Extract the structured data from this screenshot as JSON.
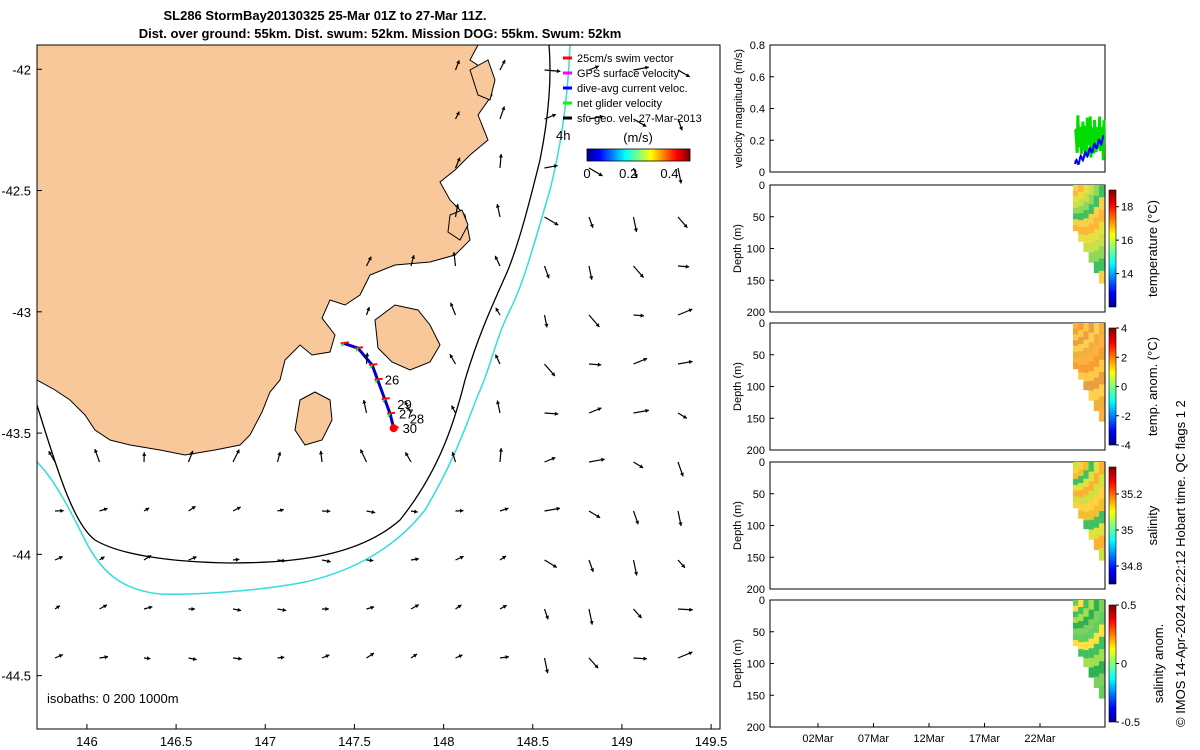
{
  "title": {
    "line1": "SL286 StormBay20130325 25-Mar 01Z to 27-Mar 11Z.",
    "line2": "Dist. over ground: 55km. Dist. swum: 52km. Mission DOG: 55km. Swum: 52km"
  },
  "colors": {
    "land": "#f9c89a",
    "isobath_200": "#000000",
    "isobath_1000": "#33dddd",
    "swim_vector": "#ff0000",
    "gps_velocity": "#ff00ff",
    "dive_avg": "#0000ff",
    "net_glider": "#00ff00",
    "sfc_geo": "#000000"
  },
  "chart_data": [
    {
      "type": "map",
      "x_ticks": [
        "146",
        "146.5",
        "147",
        "147.5",
        "148",
        "148.5",
        "149",
        "149.5"
      ],
      "y_ticks": [
        "-42",
        "-42.5",
        "-43",
        "-43.5",
        "-44",
        "-44.5"
      ],
      "xlim": [
        145.72,
        149.55
      ],
      "ylim": [
        -44.72,
        -41.9
      ],
      "legend": [
        {
          "label": "25cm/s swim vector",
          "color": "#ff0000"
        },
        {
          "label": "GPS surface velocity",
          "color": "#ff00ff"
        },
        {
          "label": "dive-avg current veloc.",
          "color": "#0000ff"
        },
        {
          "label": "net glider velocity",
          "color": "#00ff00"
        },
        {
          "label": "sfc geo. vel. 27-Mar-2013",
          "color": "#000000"
        }
      ],
      "colorbar": {
        "label": "(m/s)",
        "ticks": [
          "0",
          "0.2",
          "0.4"
        ],
        "range": [
          0,
          0.5
        ]
      },
      "note_4h": "4h",
      "isobaths_label": "isobaths: 0   200  1000m",
      "track": [
        {
          "lon": 147.44,
          "lat": -43.13
        },
        {
          "lon": 147.52,
          "lat": -43.15
        },
        {
          "lon": 147.6,
          "lat": -43.22
        },
        {
          "lon": 147.63,
          "lat": -43.28
        },
        {
          "lon": 147.67,
          "lat": -43.36
        },
        {
          "lon": 147.7,
          "lat": -43.42
        },
        {
          "lon": 147.72,
          "lat": -43.48
        }
      ],
      "day_labels": [
        {
          "text": "26",
          "lon": 147.67,
          "lat": -43.28
        },
        {
          "text": "29",
          "lon": 147.74,
          "lat": -43.38
        },
        {
          "text": "27",
          "lon": 147.75,
          "lat": -43.42
        },
        {
          "text": "28",
          "lon": 147.81,
          "lat": -43.44
        },
        {
          "text": "30",
          "lon": 147.77,
          "lat": -43.48
        }
      ]
    },
    {
      "type": "line",
      "ylabel": "velocity magnitude (m/s)",
      "y_ticks": [
        "0",
        "0.2",
        "0.4",
        "0.6",
        "0.8"
      ],
      "ylim": [
        0,
        0.8
      ]
    },
    {
      "type": "heatmap",
      "ylabel": "Depth (m)",
      "y_ticks": [
        "0",
        "50",
        "100",
        "150",
        "200"
      ],
      "colorbar_label": "temperature (°C)",
      "colorbar_ticks": [
        "18",
        "16",
        "14"
      ],
      "colorbar_range": [
        12,
        19
      ]
    },
    {
      "type": "heatmap",
      "ylabel": "Depth (m)",
      "y_ticks": [
        "0",
        "50",
        "100",
        "150",
        "200"
      ],
      "colorbar_label": "temp. anom. (°C)",
      "colorbar_ticks": [
        "4",
        "2",
        "0",
        "-2",
        "-4"
      ],
      "colorbar_range": [
        -4,
        4
      ]
    },
    {
      "type": "heatmap",
      "ylabel": "Depth (m)",
      "y_ticks": [
        "0",
        "50",
        "100",
        "150",
        "200"
      ],
      "colorbar_label": "salinity",
      "colorbar_ticks": [
        "35.2",
        "35",
        "34.8"
      ],
      "colorbar_range": [
        34.7,
        35.35
      ]
    },
    {
      "type": "heatmap",
      "ylabel": "Depth (m)",
      "y_ticks": [
        "0",
        "50",
        "100",
        "150",
        "200"
      ],
      "x_ticks": [
        "02Mar",
        "07Mar",
        "12Mar",
        "17Mar",
        "22Mar"
      ],
      "colorbar_label": "salinity anom.",
      "colorbar_ticks": [
        "0.5",
        "0",
        "-0.5"
      ],
      "colorbar_range": [
        -0.5,
        0.5
      ]
    }
  ],
  "side_note": "© IMOS 14-Apr-2024 22:22:12 Hobart time. QC flags 1  2"
}
